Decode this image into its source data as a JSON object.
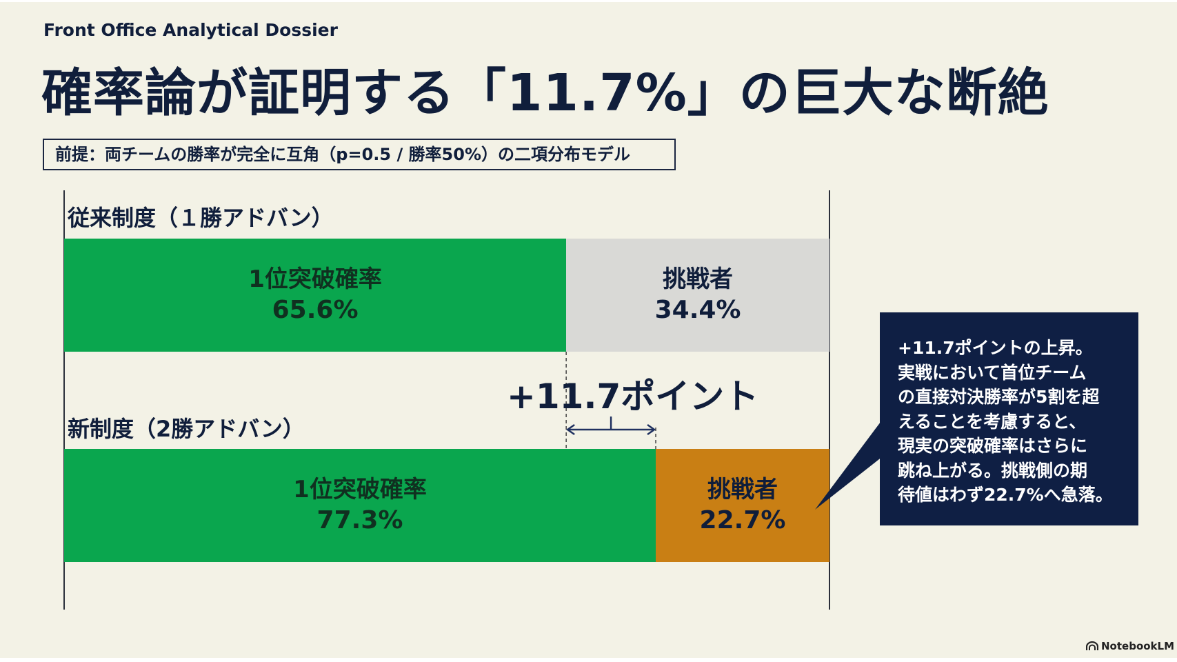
{
  "header": {
    "dossier": "Front Office Analytical Dossier",
    "title": "確率論が証明する「11.7%」の巨大な断絶",
    "premise": "前提：両チームの勝率が完全に互角（p=0.5 / 勝率50%）の二項分布モデル"
  },
  "chart_data": {
    "type": "bar",
    "orientation": "horizontal",
    "stacked": true,
    "xlim": [
      0,
      100
    ],
    "rows": [
      {
        "label": "従来制度（１勝アドバン）",
        "segments": [
          {
            "label": "1位突破確率",
            "value": 65.6,
            "display": "65.6%",
            "color": "#0aa64e"
          },
          {
            "label": "挑戦者",
            "value": 34.4,
            "display": "34.4%",
            "color": "#d9d9d6"
          }
        ]
      },
      {
        "label": "新制度（2勝アドバン）",
        "segments": [
          {
            "label": "1位突破確率",
            "value": 77.3,
            "display": "77.3%",
            "color": "#0aa64e"
          },
          {
            "label": "挑戦者",
            "value": 22.7,
            "display": "22.7%",
            "color": "#c97f14"
          }
        ]
      }
    ],
    "annotations": {
      "difference_label": "+11.7ポイント",
      "difference_value": 11.7
    }
  },
  "callout": {
    "lines": [
      "+11.7ポイントの上昇。",
      "実戦において首位チーム",
      "の直接対決勝率が5割を超",
      "えることを考慮すると、",
      "現実の突破確率はさらに",
      "跳ね上がる。挑戦側の期",
      "待値はわず22.7%へ急落。"
    ],
    "bg_color": "#0f1f44"
  },
  "footer": {
    "brand": "NotebookLM"
  }
}
